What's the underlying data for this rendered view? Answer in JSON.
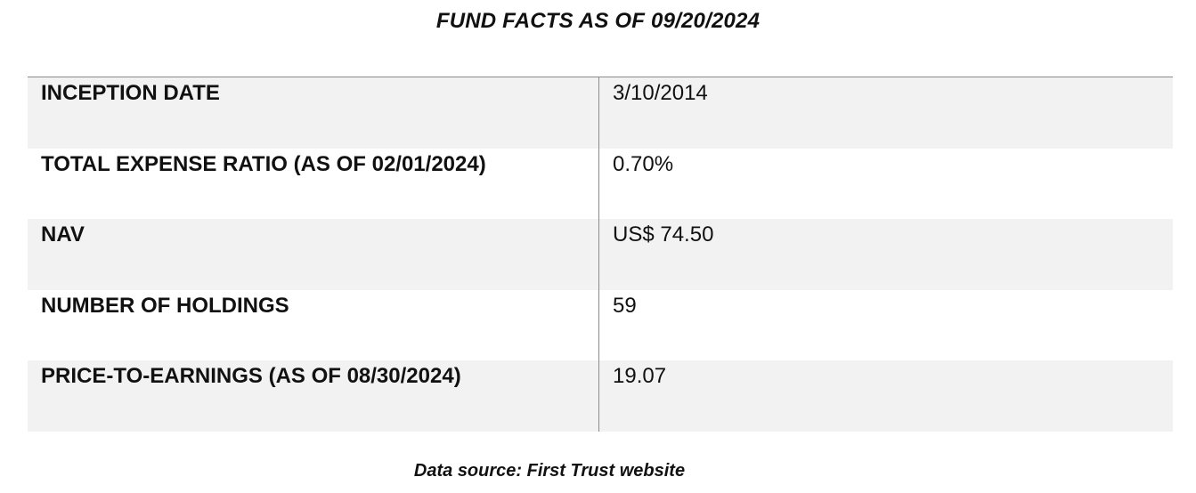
{
  "title": "FUND FACTS AS OF 09/20/2024",
  "rows": [
    {
      "label": "INCEPTION DATE",
      "value": "3/10/2014"
    },
    {
      "label": "TOTAL EXPENSE RATIO (AS OF 02/01/2024)",
      "value": "0.70%"
    },
    {
      "label": "NAV",
      "value": "US$ 74.50"
    },
    {
      "label": "NUMBER OF HOLDINGS",
      "value": "59"
    },
    {
      "label": "PRICE-TO-EARNINGS (AS OF 08/30/2024)",
      "value": "19.07"
    }
  ],
  "source": "Data source: First Trust website",
  "colors": {
    "shaded_row": "#f2f2f2",
    "divider": "#8a8a8a"
  }
}
